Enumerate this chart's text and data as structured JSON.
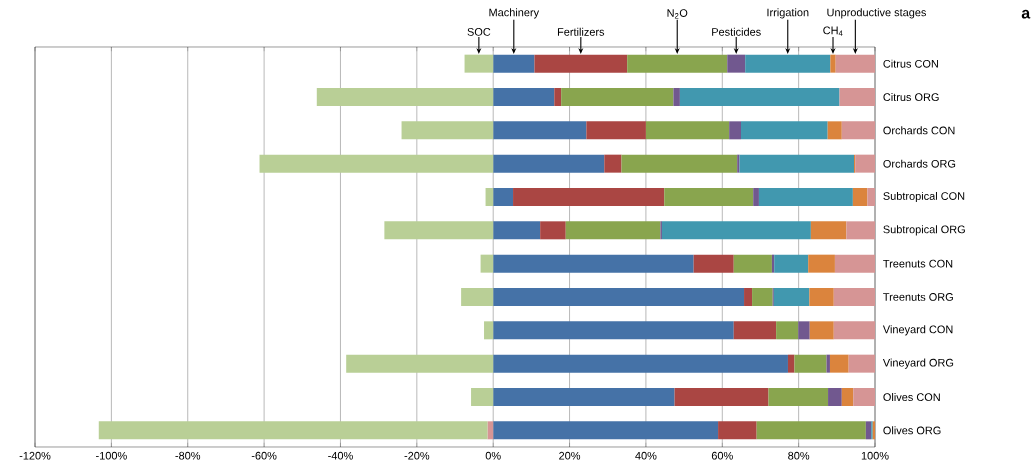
{
  "chart_data": {
    "type": "bar",
    "orientation": "horizontal",
    "stacked": true,
    "categories": [
      "Citrus CON",
      "Citrus ORG",
      "Orchards CON",
      "Orchards ORG",
      "Subtropical CON",
      "Subtropical ORG",
      "Treenuts CON",
      "Treenuts ORG",
      "Vineyard CON",
      "Vineyard ORG",
      "Olives CON",
      "Olives ORG"
    ],
    "series": [
      {
        "name": "Machinery",
        "color": "#4572a7",
        "values": [
          10.8,
          16,
          24.4,
          29.1,
          5.2,
          12.3,
          52.5,
          65.7,
          63,
          77.2,
          47.5,
          58.9
        ]
      },
      {
        "name": "Fertilizers",
        "color": "#aa4643",
        "values": [
          24.3,
          1.8,
          15.6,
          4.5,
          39.6,
          6.7,
          10.5,
          2.1,
          11.1,
          1.7,
          24.6,
          10.1
        ]
      },
      {
        "name": "N$_{2}$O",
        "color": "#89a54e",
        "values": [
          26.2,
          29.4,
          21.8,
          30.3,
          23.3,
          24.8,
          10,
          5.4,
          5.8,
          8.4,
          15.6,
          28.6
        ]
      },
      {
        "name": "Pesticides",
        "color": "#71588f",
        "values": [
          4.7,
          1.7,
          3.1,
          0.6,
          1.5,
          0.4,
          0.6,
          0.3,
          3,
          0.9,
          3.6,
          1.4
        ]
      },
      {
        "name": "Irrigation",
        "color": "#4198af",
        "values": [
          22.3,
          41.8,
          22.7,
          30,
          24.6,
          39,
          8.9,
          9.3,
          0,
          0,
          0,
          0.4
        ]
      },
      {
        "name": "CH$_{4}$",
        "color": "#db843d",
        "values": [
          1.4,
          0,
          3.7,
          0.3,
          3.8,
          9.3,
          7,
          6.4,
          6.3,
          4.9,
          3,
          0.6
        ]
      },
      {
        "name": "Unproductive stages",
        "color": "#d69595",
        "values": [
          10.3,
          9.3,
          8.7,
          5.2,
          2,
          7.5,
          10.5,
          10.8,
          10.8,
          6.9,
          5.7,
          -1.5
        ]
      },
      {
        "name": "SOC",
        "color": "#b9cf96",
        "values": [
          -7.5,
          -46.2,
          -24,
          -61.2,
          -2,
          -28.5,
          -3.3,
          -8.4,
          -2.4,
          -38.5,
          -5.8,
          -101.8
        ]
      }
    ],
    "xlim": [
      -120,
      100
    ],
    "xticks": [
      {
        "value": -120,
        "label": "-120%"
      },
      {
        "value": -100,
        "label": "-100%"
      },
      {
        "value": -80,
        "label": "-80%"
      },
      {
        "value": -60,
        "label": "-60%"
      },
      {
        "value": -40,
        "label": "-40%"
      },
      {
        "value": -20,
        "label": "-20%"
      },
      {
        "value": 0,
        "label": "0%"
      },
      {
        "value": 20,
        "label": "20%"
      },
      {
        "value": 40,
        "label": "40%"
      },
      {
        "value": 60,
        "label": "60%"
      },
      {
        "value": 80,
        "label": "80%"
      },
      {
        "value": 100,
        "label": "100%"
      }
    ],
    "grid": "x",
    "annotations": [
      "a"
    ]
  }
}
